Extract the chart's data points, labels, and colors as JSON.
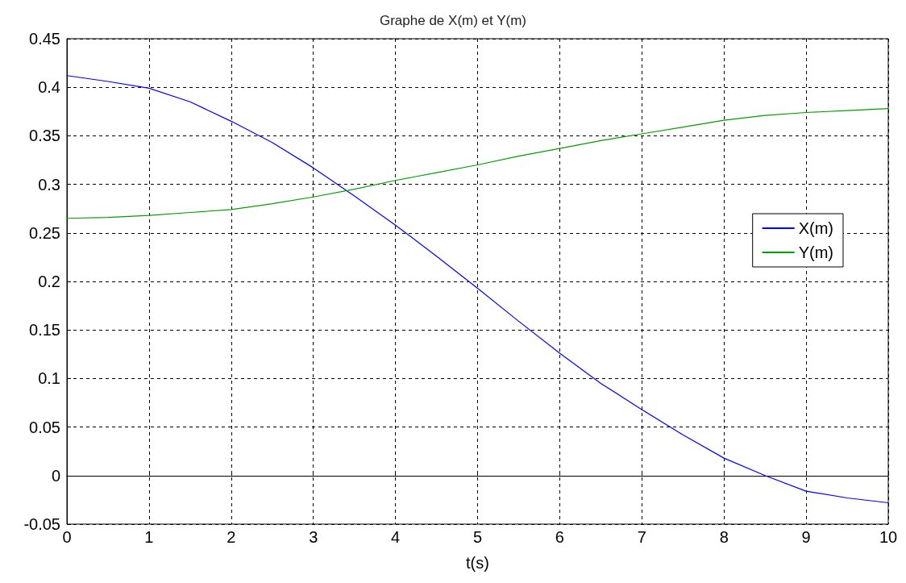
{
  "chart_data": {
    "type": "line",
    "title": "Graphe de X(m) et Y(m)",
    "xlabel": "t(s)",
    "xlim": [
      0,
      10
    ],
    "xticks": [
      0,
      1,
      2,
      3,
      4,
      5,
      6,
      7,
      8,
      9,
      10
    ],
    "ylim": [
      -0.05,
      0.45
    ],
    "yticks": [
      -0.05,
      0,
      0.05,
      0.1,
      0.15,
      0.2,
      0.25,
      0.3,
      0.35,
      0.4,
      0.45
    ],
    "grid": true,
    "legend": "right",
    "marker": "none",
    "line_style": "solid",
    "x": [
      0,
      0.5,
      1,
      1.5,
      2,
      2.5,
      3,
      3.5,
      4,
      4.5,
      5,
      5.5,
      6,
      6.5,
      7,
      7.5,
      8,
      8.5,
      9,
      9.5,
      10
    ],
    "series": [
      {
        "name": "X(m)",
        "color": "#0000ff",
        "values": [
          0.412,
          0.406,
          0.399,
          0.385,
          0.365,
          0.343,
          0.317,
          0.288,
          0.258,
          0.226,
          0.193,
          0.159,
          0.126,
          0.095,
          0.068,
          0.042,
          0.018,
          0.0,
          -0.016,
          -0.023,
          -0.028
        ]
      },
      {
        "name": "Y(m)",
        "color": "#00a000",
        "values": [
          0.265,
          0.266,
          0.268,
          0.271,
          0.274,
          0.28,
          0.287,
          0.295,
          0.304,
          0.312,
          0.32,
          0.329,
          0.337,
          0.345,
          0.352,
          0.359,
          0.366,
          0.371,
          0.374,
          0.376,
          0.378
        ]
      }
    ]
  }
}
